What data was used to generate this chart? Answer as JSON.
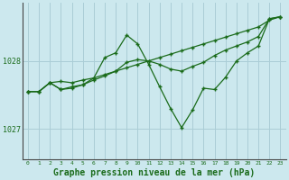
{
  "background_color": "#cce8ee",
  "grid_color": "#aacdd6",
  "line_color": "#1a6b1a",
  "xlabel": "Graphe pression niveau de la mer (hPa)",
  "xlabel_fontsize": 7,
  "yticks": [
    1027,
    1028
  ],
  "xlim": [
    -0.5,
    23.5
  ],
  "ylim": [
    1026.55,
    1028.85
  ],
  "figsize": [
    3.2,
    2.0
  ],
  "dpi": 100,
  "series": {
    "line1_x": [
      0,
      1,
      2,
      3,
      4,
      5,
      6,
      7,
      8,
      9,
      10,
      11,
      12,
      13,
      14,
      15,
      16,
      17,
      18,
      19,
      20,
      21,
      22,
      23
    ],
    "line1_y": [
      1027.55,
      1027.55,
      1027.68,
      1027.7,
      1027.68,
      1027.72,
      1027.75,
      1027.8,
      1027.85,
      1027.9,
      1027.95,
      1028.0,
      1028.05,
      1028.1,
      1028.15,
      1028.2,
      1028.25,
      1028.3,
      1028.35,
      1028.4,
      1028.45,
      1028.5,
      1028.6,
      1028.65
    ],
    "line2_x": [
      0,
      1,
      2,
      3,
      4,
      5,
      6,
      7,
      8,
      9,
      10,
      11,
      12,
      13,
      14,
      15,
      16,
      17,
      18,
      19,
      20,
      21,
      22,
      23
    ],
    "line2_y": [
      1027.55,
      1027.55,
      1027.68,
      1027.58,
      1027.6,
      1027.65,
      1027.75,
      1028.05,
      1028.12,
      1028.38,
      1028.25,
      1027.95,
      1027.62,
      1027.3,
      1027.02,
      1027.28,
      1027.6,
      1027.58,
      1027.76,
      1028.0,
      1028.12,
      1028.22,
      1028.62,
      1028.65
    ],
    "line3_x": [
      0,
      1,
      2,
      3,
      4,
      5,
      6,
      7,
      8,
      9,
      10,
      11,
      12,
      13,
      14,
      15,
      16,
      17,
      18,
      19,
      20,
      21,
      22,
      23
    ],
    "line3_y": [
      1027.55,
      1027.55,
      1027.68,
      1027.58,
      1027.62,
      1027.65,
      1027.72,
      1027.78,
      1027.85,
      1027.98,
      1028.02,
      1028.0,
      1027.95,
      1027.88,
      1027.85,
      1027.92,
      1027.98,
      1028.08,
      1028.16,
      1028.22,
      1028.28,
      1028.36,
      1028.62,
      1028.65
    ]
  }
}
